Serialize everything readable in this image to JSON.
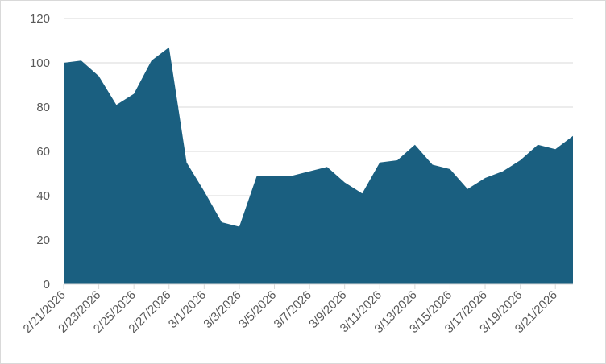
{
  "chart_data": {
    "type": "area",
    "title": "",
    "xlabel": "",
    "ylabel": "",
    "ylim": [
      0,
      120
    ],
    "yticks": [
      0,
      20,
      40,
      60,
      80,
      100,
      120
    ],
    "grid": true,
    "legend": "none",
    "x": [
      "2/21/2026",
      "2/22/2026",
      "2/23/2026",
      "2/24/2026",
      "2/25/2026",
      "2/26/2026",
      "2/27/2026",
      "2/28/2026",
      "3/1/2026",
      "3/2/2026",
      "3/3/2026",
      "3/4/2026",
      "3/5/2026",
      "3/6/2026",
      "3/7/2026",
      "3/8/2026",
      "3/9/2026",
      "3/10/2026",
      "3/11/2026",
      "3/12/2026",
      "3/13/2026",
      "3/14/2026",
      "3/15/2026",
      "3/16/2026",
      "3/17/2026",
      "3/18/2026",
      "3/19/2026",
      "3/20/2026",
      "3/21/2026",
      "3/22/2026"
    ],
    "xtick_labels": [
      "2/21/2026",
      "2/23/2026",
      "2/25/2026",
      "2/27/2026",
      "3/1/2026",
      "3/3/2026",
      "3/5/2026",
      "3/7/2026",
      "3/9/2026",
      "3/11/2026",
      "3/13/2026",
      "3/15/2026",
      "3/17/2026",
      "3/19/2026",
      "3/21/2026"
    ],
    "series": [
      {
        "values": [
          100,
          101,
          94,
          81,
          86,
          101,
          107,
          55,
          42,
          28,
          26,
          49,
          49,
          49,
          51,
          53,
          46,
          41,
          55,
          56,
          63,
          54,
          52,
          43,
          48,
          51,
          56,
          63,
          61,
          67
        ],
        "color": "#1a5f80"
      }
    ]
  }
}
